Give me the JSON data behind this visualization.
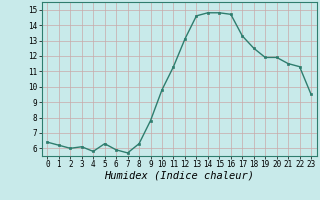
{
  "x": [
    0,
    1,
    2,
    3,
    4,
    5,
    6,
    7,
    8,
    9,
    10,
    11,
    12,
    13,
    14,
    15,
    16,
    17,
    18,
    19,
    20,
    21,
    22,
    23
  ],
  "y": [
    6.4,
    6.2,
    6.0,
    6.1,
    5.8,
    6.3,
    5.9,
    5.7,
    6.3,
    7.8,
    9.8,
    11.3,
    13.1,
    14.6,
    14.8,
    14.8,
    14.7,
    13.3,
    12.5,
    11.9,
    11.9,
    11.5,
    11.3,
    9.5
  ],
  "line_color": "#2e7d6e",
  "marker": "s",
  "marker_size": 2.0,
  "linewidth": 1.0,
  "xlabel": "Humidex (Indice chaleur)",
  "xlabel_fontsize": 7.5,
  "xlabel_style": "italic",
  "ylim": [
    5.5,
    15.5
  ],
  "xlim": [
    -0.5,
    23.5
  ],
  "yticks": [
    6,
    7,
    8,
    9,
    10,
    11,
    12,
    13,
    14,
    15
  ],
  "xticks": [
    0,
    1,
    2,
    3,
    4,
    5,
    6,
    7,
    8,
    9,
    10,
    11,
    12,
    13,
    14,
    15,
    16,
    17,
    18,
    19,
    20,
    21,
    22,
    23
  ],
  "grid_color": "#c8a8a8",
  "background_color": "#c8eaea",
  "tick_fontsize": 5.5
}
